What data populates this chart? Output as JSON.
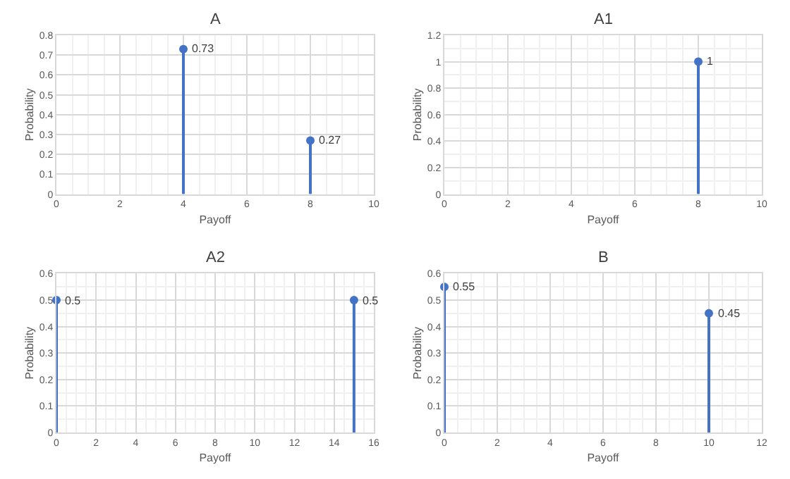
{
  "chart_data": [
    {
      "type": "lollipop",
      "title": "A",
      "xlabel": "Payoff",
      "ylabel": "Probability",
      "x": [
        4,
        8
      ],
      "values": [
        0.73,
        0.27
      ],
      "color": "#4472c4",
      "xlim": [
        0,
        10
      ],
      "xticks": [
        0,
        2,
        4,
        6,
        8,
        10
      ],
      "ylim": [
        0,
        0.8
      ],
      "yticks": [
        0,
        0.1,
        0.2,
        0.3,
        0.4,
        0.5,
        0.6,
        0.7,
        0.8
      ],
      "grid": true,
      "marker": "circle",
      "data_labels": true
    },
    {
      "type": "lollipop",
      "title": "A1",
      "xlabel": "Payoff",
      "ylabel": "Probability",
      "x": [
        8
      ],
      "values": [
        1
      ],
      "color": "#4472c4",
      "xlim": [
        0,
        10
      ],
      "xticks": [
        0,
        2,
        4,
        6,
        8,
        10
      ],
      "ylim": [
        0,
        1.2
      ],
      "yticks": [
        0,
        0.2,
        0.4,
        0.6,
        0.8,
        1,
        1.2
      ],
      "grid": true,
      "marker": "circle",
      "data_labels": true
    },
    {
      "type": "lollipop",
      "title": "A2",
      "xlabel": "Payoff",
      "ylabel": "Probability",
      "x": [
        0,
        15
      ],
      "values": [
        0.5,
        0.5
      ],
      "color": "#4472c4",
      "xlim": [
        0,
        16
      ],
      "xticks": [
        0,
        2,
        4,
        6,
        8,
        10,
        12,
        14,
        16
      ],
      "ylim": [
        0,
        0.6
      ],
      "yticks": [
        0,
        0.1,
        0.2,
        0.3,
        0.4,
        0.5,
        0.6
      ],
      "grid": true,
      "marker": "circle",
      "data_labels": true
    },
    {
      "type": "lollipop",
      "title": "B",
      "xlabel": "Payoff",
      "ylabel": "Probability",
      "x": [
        0,
        10
      ],
      "values": [
        0.55,
        0.45
      ],
      "color": "#4472c4",
      "xlim": [
        0,
        12
      ],
      "xticks": [
        0,
        2,
        4,
        6,
        8,
        10,
        12
      ],
      "ylim": [
        0,
        0.6
      ],
      "yticks": [
        0,
        0.1,
        0.2,
        0.3,
        0.4,
        0.5,
        0.6
      ],
      "grid": true,
      "marker": "circle",
      "data_labels": true
    }
  ]
}
